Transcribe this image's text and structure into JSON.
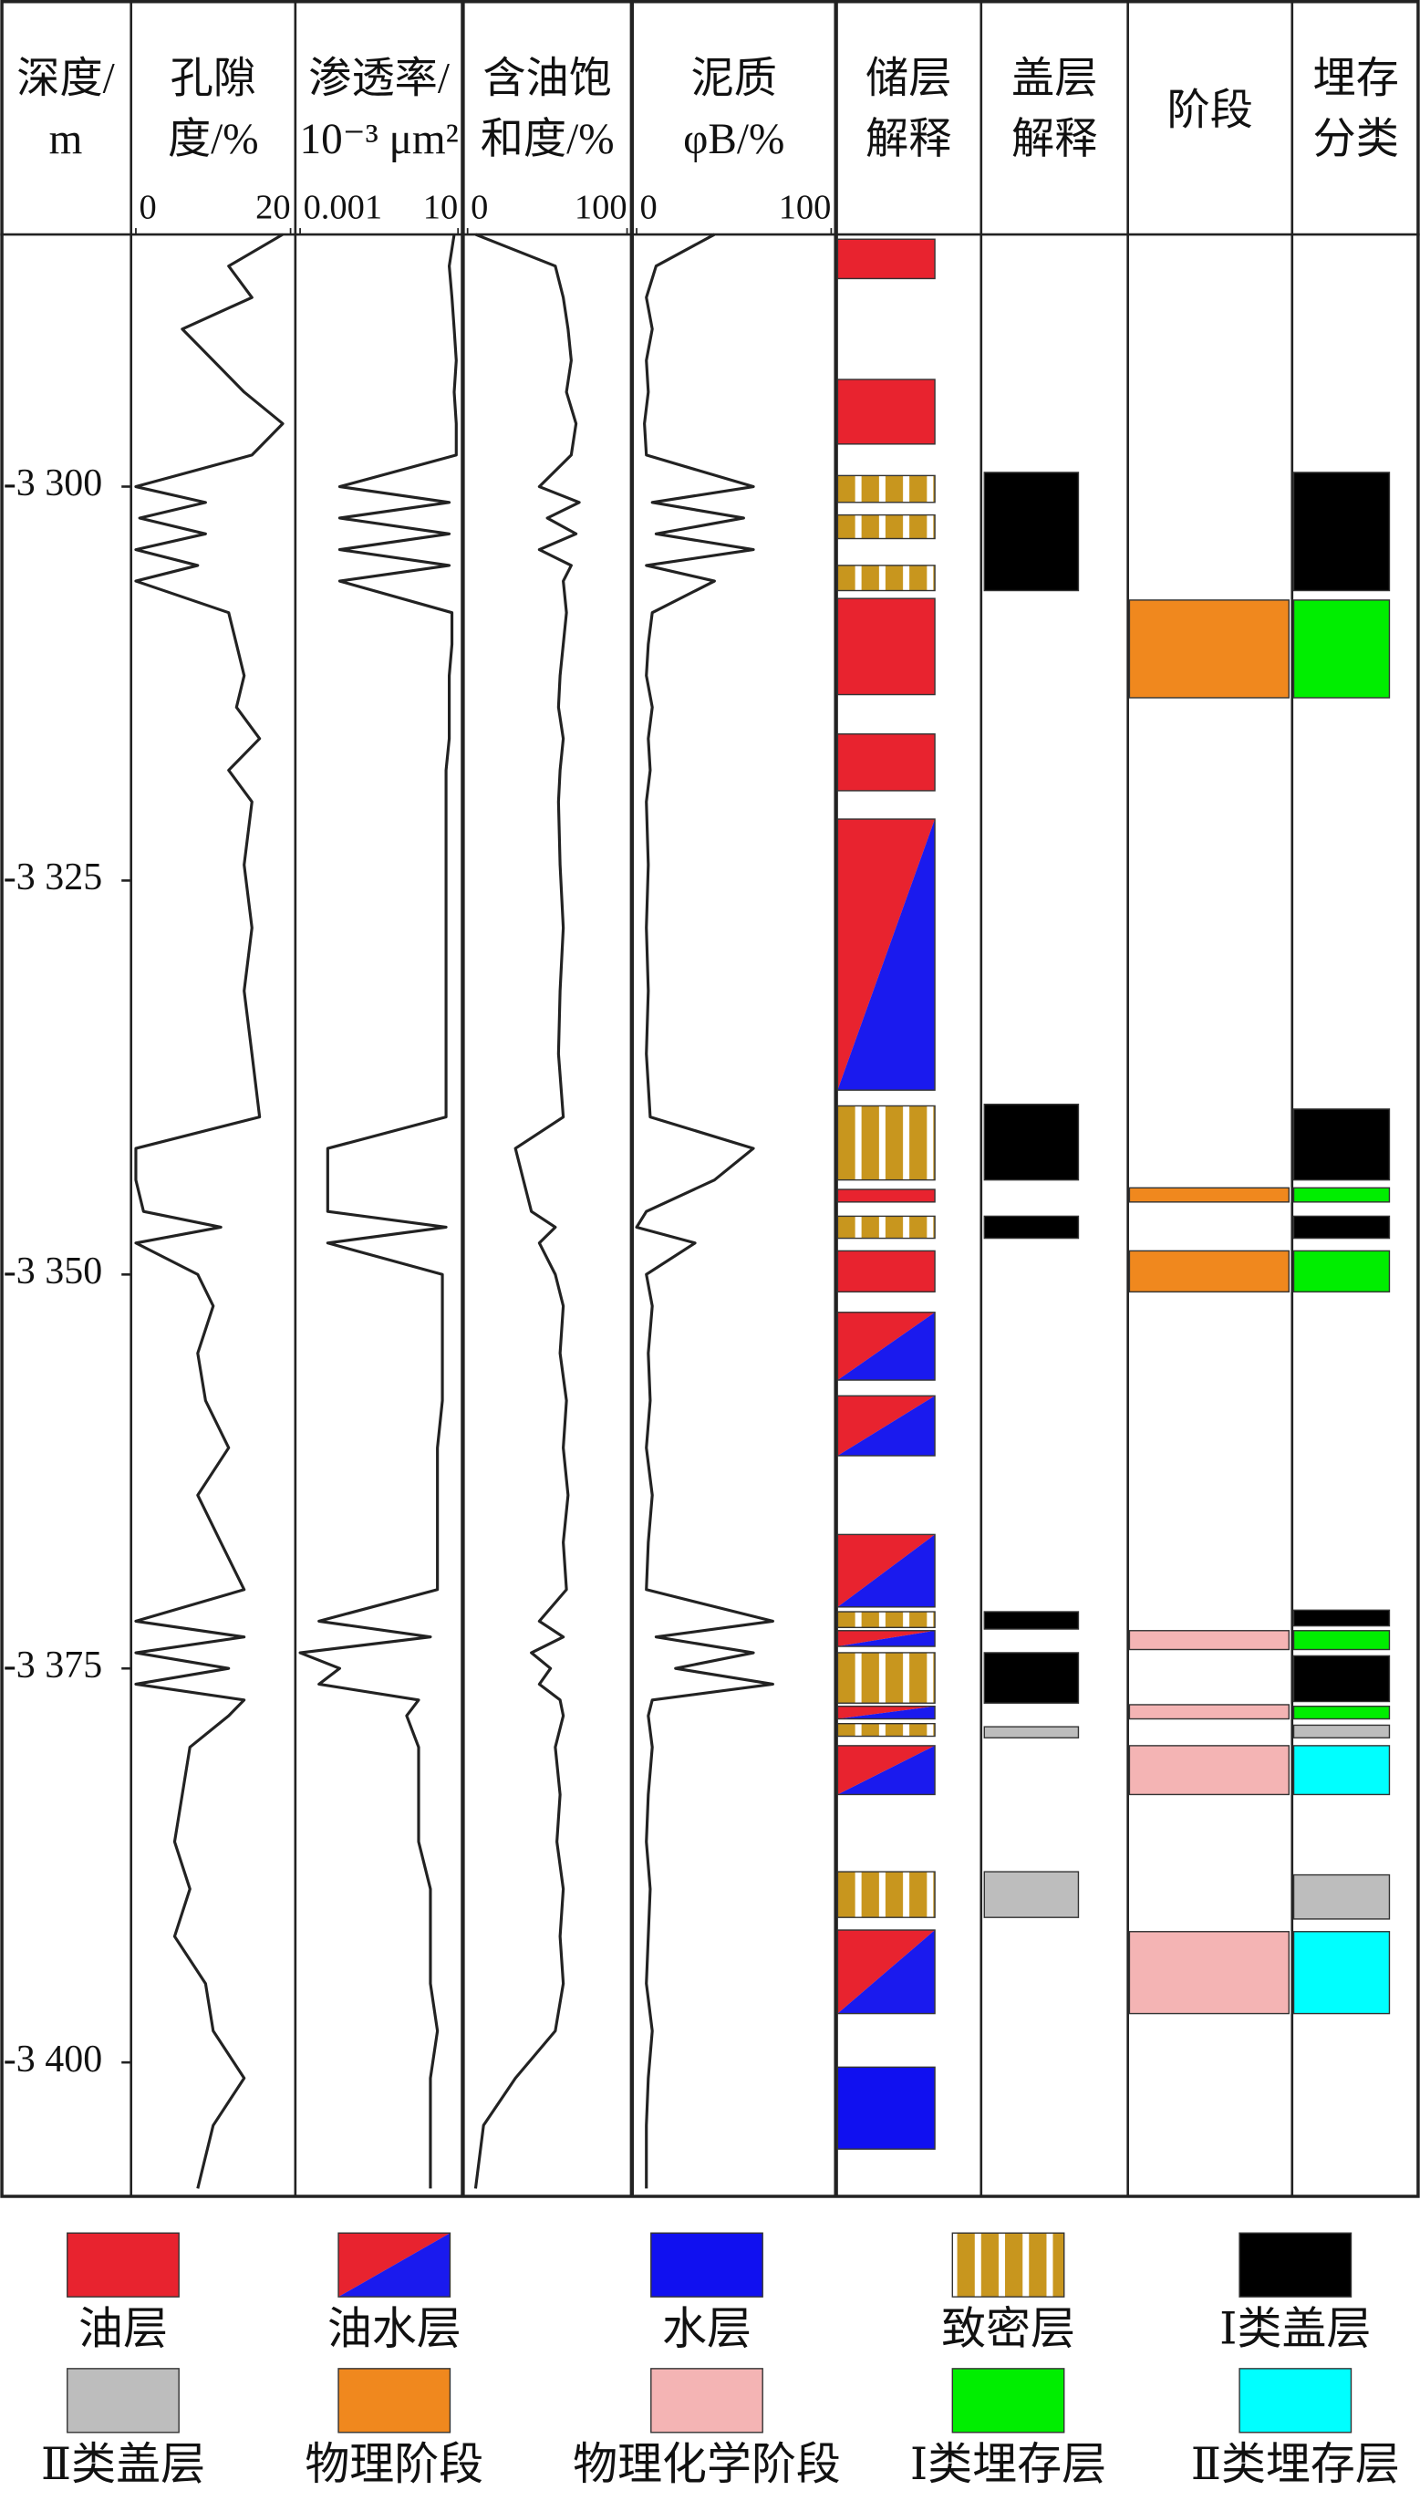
{
  "chart_data": {
    "type": "well-log",
    "depth_label": [
      "深度/",
      "m"
    ],
    "ylim": [
      -3284,
      -3408.5
    ],
    "yticks": [
      {
        "value": -3300,
        "label": "-3 300"
      },
      {
        "value": -3325,
        "label": "-3 325"
      },
      {
        "value": -3350,
        "label": "-3 350"
      },
      {
        "value": -3375,
        "label": "-3 375"
      },
      {
        "value": -3400,
        "label": "-3 400"
      }
    ],
    "depth": [
      -3284,
      -3286,
      -3288,
      -3290,
      -3292,
      -3294,
      -3296,
      -3298,
      -3300,
      -3301,
      -3302,
      -3303,
      -3304,
      -3305,
      -3306,
      -3308,
      -3310,
      -3312,
      -3314,
      -3316,
      -3318,
      -3320,
      -3324,
      -3328,
      -3332,
      -3336,
      -3340,
      -3342,
      -3344,
      -3346,
      -3347,
      -3348,
      -3350,
      -3352,
      -3355,
      -3358,
      -3361,
      -3364,
      -3367,
      -3370,
      -3372,
      -3373,
      -3374,
      -3375,
      -3376,
      -3377,
      -3378,
      -3380,
      -3383,
      -3386,
      -3389,
      -3392,
      -3395,
      -3398,
      -3401,
      -3404,
      -3408
    ],
    "curves": [
      {
        "name": [
          "孔隙",
          "度/%"
        ],
        "xlim": [
          0,
          20
        ],
        "xticks": [
          0,
          20
        ],
        "log": false,
        "color": "#222222",
        "values": [
          19,
          12,
          15,
          6,
          10,
          14,
          19,
          15,
          0,
          9,
          0.5,
          9,
          0,
          8,
          0,
          12,
          13,
          14,
          13,
          16,
          12,
          15,
          14,
          15,
          14,
          15,
          16,
          0,
          0,
          1,
          11,
          0,
          8,
          10,
          8,
          9,
          12,
          8,
          11,
          14,
          0,
          14,
          0,
          12,
          0,
          14,
          12,
          7,
          6,
          5,
          7,
          5,
          9,
          10,
          14,
          10,
          8
        ]
      },
      {
        "name": [
          "渗透率/",
          "10⁻³ μm²"
        ],
        "xlim": [
          0.001,
          10
        ],
        "xticks": [
          0.001,
          10
        ],
        "log": true,
        "color": "#222222",
        "values": [
          8,
          6,
          7,
          8,
          9,
          8,
          9,
          9,
          0.01,
          6,
          0.01,
          6,
          0.01,
          6,
          0.01,
          7,
          7,
          6,
          6,
          6,
          5,
          5,
          5,
          5,
          5,
          5,
          5,
          0.005,
          0.005,
          0.005,
          5,
          0.005,
          4,
          4,
          4,
          4,
          3,
          3,
          3,
          3,
          0.003,
          2,
          0.001,
          0.01,
          0.003,
          1,
          0.5,
          1,
          1,
          1,
          2,
          2,
          2,
          3,
          2,
          2,
          2
        ]
      },
      {
        "name": [
          "含油饱",
          "和度/%"
        ],
        "xlim": [
          0,
          100
        ],
        "xticks": [
          0,
          100
        ],
        "log": false,
        "color": "#222222",
        "values": [
          5,
          55,
          60,
          63,
          65,
          62,
          68,
          65,
          45,
          70,
          50,
          68,
          45,
          65,
          60,
          62,
          60,
          58,
          57,
          60,
          58,
          57,
          58,
          60,
          58,
          57,
          60,
          30,
          35,
          40,
          55,
          45,
          55,
          60,
          58,
          62,
          60,
          63,
          60,
          62,
          45,
          60,
          40,
          52,
          45,
          58,
          60,
          55,
          58,
          56,
          60,
          58,
          60,
          55,
          30,
          10,
          5
        ]
      },
      {
        "name": [
          "泥质",
          "φB/%"
        ],
        "xlim": [
          0,
          100
        ],
        "xticks": [
          0,
          100
        ],
        "log": false,
        "color": "#222222",
        "values": [
          40,
          10,
          5,
          8,
          5,
          6,
          4,
          5,
          60,
          8,
          55,
          10,
          60,
          5,
          40,
          8,
          6,
          5,
          8,
          6,
          7,
          5,
          6,
          5,
          6,
          5,
          7,
          60,
          40,
          5,
          0,
          30,
          5,
          8,
          6,
          7,
          5,
          8,
          6,
          5,
          70,
          10,
          60,
          20,
          70,
          8,
          6,
          8,
          6,
          5,
          7,
          6,
          5,
          8,
          6,
          5,
          5
        ]
      }
    ],
    "interval_tracks": [
      {
        "name": [
          "储层",
          "解释"
        ],
        "intervals": [
          {
            "type": "油层",
            "top": -3284.3,
            "bottom": -3286.8
          },
          {
            "type": "油层",
            "top": -3293.2,
            "bottom": -3297.3
          },
          {
            "type": "致密层",
            "top": -3299.3,
            "bottom": -3301.0
          },
          {
            "type": "致密层",
            "top": -3301.8,
            "bottom": -3303.3
          },
          {
            "type": "致密层",
            "top": -3305.0,
            "bottom": -3306.6
          },
          {
            "type": "油层",
            "top": -3307.1,
            "bottom": -3313.2
          },
          {
            "type": "油层",
            "top": -3315.7,
            "bottom": -3319.3
          },
          {
            "type": "油水层",
            "top": -3321.1,
            "bottom": -3338.3
          },
          {
            "type": "致密层",
            "top": -3339.3,
            "bottom": -3344.0
          },
          {
            "type": "油层",
            "top": -3344.6,
            "bottom": -3345.4
          },
          {
            "type": "致密层",
            "top": -3346.3,
            "bottom": -3347.7
          },
          {
            "type": "油层",
            "top": -3348.5,
            "bottom": -3351.1
          },
          {
            "type": "油水层",
            "top": -3352.4,
            "bottom": -3356.7
          },
          {
            "type": "油水层",
            "top": -3357.7,
            "bottom": -3361.5
          },
          {
            "type": "油水层",
            "top": -3366.5,
            "bottom": -3371.1
          },
          {
            "type": "致密层",
            "top": -3371.4,
            "bottom": -3372.4
          },
          {
            "type": "油水层",
            "top": -3372.6,
            "bottom": -3373.6
          },
          {
            "type": "致密层",
            "top": -3374.0,
            "bottom": -3377.2
          },
          {
            "type": "油水层",
            "top": -3377.4,
            "bottom": -3378.2
          },
          {
            "type": "致密层",
            "top": -3378.5,
            "bottom": -3379.3
          },
          {
            "type": "油水层",
            "top": -3379.9,
            "bottom": -3383.0
          },
          {
            "type": "致密层",
            "top": -3387.9,
            "bottom": -3390.8
          },
          {
            "type": "油水层",
            "top": -3391.6,
            "bottom": -3396.9
          },
          {
            "type": "水层",
            "top": -3400.3,
            "bottom": -3405.5
          }
        ]
      },
      {
        "name": [
          "盖层",
          "解释"
        ],
        "intervals": [
          {
            "type": "Ⅰ类盖层",
            "top": -3299.1,
            "bottom": -3306.6
          },
          {
            "type": "Ⅰ类盖层",
            "top": -3339.2,
            "bottom": -3344.0
          },
          {
            "type": "Ⅰ类盖层",
            "top": -3346.3,
            "bottom": -3347.7
          },
          {
            "type": "Ⅰ类盖层",
            "top": -3371.4,
            "bottom": -3372.5
          },
          {
            "type": "Ⅰ类盖层",
            "top": -3374.0,
            "bottom": -3377.2
          },
          {
            "type": "Ⅱ类盖层",
            "top": -3378.7,
            "bottom": -3379.4
          },
          {
            "type": "Ⅱ类盖层",
            "top": -3387.9,
            "bottom": -3390.8
          }
        ]
      },
      {
        "name": [
          "阶段"
        ],
        "intervals": [
          {
            "type": "物理阶段",
            "top": -3307.2,
            "bottom": -3313.4
          },
          {
            "type": "物理阶段",
            "top": -3344.5,
            "bottom": -3345.4
          },
          {
            "type": "物理阶段",
            "top": -3348.5,
            "bottom": -3351.1
          },
          {
            "type": "物理化学阶段",
            "top": -3372.6,
            "bottom": -3373.8
          },
          {
            "type": "物理化学阶段",
            "top": -3377.3,
            "bottom": -3378.2
          },
          {
            "type": "物理化学阶段",
            "top": -3379.9,
            "bottom": -3383.0
          },
          {
            "type": "物理化学阶段",
            "top": -3391.7,
            "bottom": -3396.9
          }
        ]
      },
      {
        "name": [
          "埋存",
          "分类"
        ],
        "intervals": [
          {
            "type": "Ⅰ类盖层",
            "top": -3299.1,
            "bottom": -3306.6
          },
          {
            "type": "Ⅰ类埋存层",
            "top": -3307.2,
            "bottom": -3313.4
          },
          {
            "type": "Ⅰ类盖层",
            "top": -3339.5,
            "bottom": -3344.0
          },
          {
            "type": "Ⅰ类埋存层",
            "top": -3344.5,
            "bottom": -3345.4
          },
          {
            "type": "Ⅰ类盖层",
            "top": -3346.3,
            "bottom": -3347.7
          },
          {
            "type": "Ⅰ类埋存层",
            "top": -3348.5,
            "bottom": -3351.1
          },
          {
            "type": "Ⅰ类盖层",
            "top": -3371.3,
            "bottom": -3372.3
          },
          {
            "type": "Ⅰ类埋存层",
            "top": -3372.6,
            "bottom": -3373.8
          },
          {
            "type": "Ⅰ类盖层",
            "top": -3374.2,
            "bottom": -3377.1
          },
          {
            "type": "Ⅰ类埋存层",
            "top": -3377.4,
            "bottom": -3378.2
          },
          {
            "type": "Ⅱ类盖层",
            "top": -3378.6,
            "bottom": -3379.4
          },
          {
            "type": "Ⅱ类埋存层",
            "top": -3379.9,
            "bottom": -3383.0
          },
          {
            "type": "Ⅱ类盖层",
            "top": -3388.1,
            "bottom": -3390.9
          },
          {
            "type": "Ⅱ类埋存层",
            "top": -3391.7,
            "bottom": -3396.9
          }
        ]
      }
    ],
    "legend": [
      {
        "label": "油层",
        "fill": "solid",
        "colors": [
          "#e8232f"
        ]
      },
      {
        "label": "油水层",
        "fill": "split",
        "colors": [
          "#e8232f",
          "#1a1aee"
        ]
      },
      {
        "label": "水层",
        "fill": "solid",
        "colors": [
          "#1010f0"
        ]
      },
      {
        "label": "致密层",
        "fill": "stripe",
        "colors": [
          "#c8961e",
          "#ffffff"
        ]
      },
      {
        "label": "Ⅰ类盖层",
        "fill": "solid",
        "colors": [
          "#000000"
        ]
      },
      {
        "label": "Ⅱ类盖层",
        "fill": "solid",
        "colors": [
          "#bdbdbd"
        ]
      },
      {
        "label": "物理阶段",
        "fill": "solid",
        "colors": [
          "#f0881e"
        ]
      },
      {
        "label": "物理化学阶段",
        "fill": "solid",
        "colors": [
          "#f4b4b4"
        ]
      },
      {
        "label": "Ⅰ类埋存层",
        "fill": "solid",
        "colors": [
          "#00ee00"
        ]
      },
      {
        "label": "Ⅱ类埋存层",
        "fill": "solid",
        "colors": [
          "#00ffff"
        ]
      }
    ]
  }
}
